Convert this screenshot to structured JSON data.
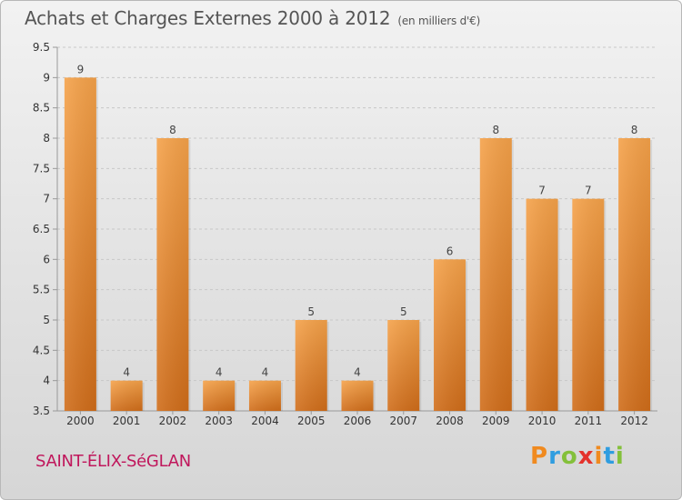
{
  "title": "Achats et Charges Externes 2000 à 2012",
  "subtitle": "(en milliers d'€)",
  "commune": "SAINT-ÉLIX-SéGLAN",
  "brand": {
    "text": "Proxiti",
    "letters": [
      "P",
      "r",
      "o",
      "x",
      "i",
      "t",
      "i"
    ],
    "colors": [
      "#f08a1f",
      "#2f9de0",
      "#84c03a",
      "#e4322b",
      "#f08a1f",
      "#2f9de0",
      "#84c03a"
    ]
  },
  "colors": {
    "bar_light": "#f5a24a",
    "bar_dark": "#d06d1a",
    "grid": "#c8c8c8",
    "axis": "#999999"
  },
  "chart_data": {
    "type": "bar",
    "categories": [
      "2000",
      "2001",
      "2002",
      "2003",
      "2004",
      "2005",
      "2006",
      "2007",
      "2008",
      "2009",
      "2010",
      "2011",
      "2012"
    ],
    "values": [
      9,
      4,
      8,
      4,
      4,
      5,
      4,
      5,
      6,
      8,
      7,
      7,
      8
    ],
    "data_labels": [
      "9",
      "4",
      "8",
      "4",
      "4",
      "5",
      "4",
      "5",
      "6",
      "8",
      "7",
      "7",
      "8"
    ],
    "yticks": [
      "3.5",
      "4",
      "4.5",
      "5",
      "5.5",
      "6",
      "6.5",
      "7",
      "7.5",
      "8",
      "8.5",
      "9",
      "9.5"
    ],
    "ylim": [
      3.5,
      9.5
    ],
    "grid": "horizontal dashed",
    "legend": "none"
  }
}
